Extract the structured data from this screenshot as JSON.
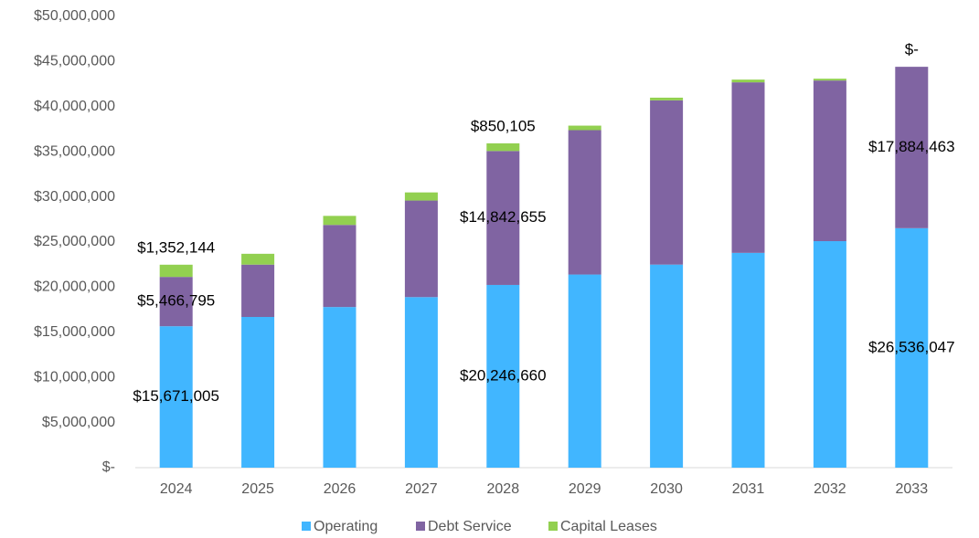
{
  "chart_data": {
    "type": "stacked_bar",
    "categories": [
      "2024",
      "2025",
      "2026",
      "2027",
      "2028",
      "2029",
      "2030",
      "2031",
      "2032",
      "2033"
    ],
    "series": [
      {
        "name": "Operating",
        "color": "#41b6ff",
        "values": [
          15671005,
          16700000,
          17800000,
          18900000,
          20246660,
          21400000,
          22500000,
          23800000,
          25100000,
          26536047
        ],
        "value_labels": [
          "$15,671,005",
          null,
          null,
          null,
          "$20,246,660",
          null,
          null,
          null,
          null,
          "$26,536,047"
        ]
      },
      {
        "name": "Debt Service",
        "color": "#8064a2",
        "values": [
          5466795,
          5800000,
          9100000,
          10700000,
          14842655,
          16000000,
          18200000,
          18900000,
          17800000,
          17884463
        ],
        "value_labels": [
          "$5,466,795",
          null,
          null,
          null,
          "$14,842,655",
          null,
          null,
          null,
          null,
          "$17,884,463"
        ]
      },
      {
        "name": "Capital Leases",
        "color": "#92d050",
        "values": [
          1352144,
          1200000,
          1000000,
          900000,
          850105,
          500000,
          300000,
          300000,
          200000,
          0
        ],
        "value_labels": [
          "$1,352,144",
          null,
          null,
          null,
          "$850,105",
          null,
          null,
          null,
          null,
          "$-"
        ]
      }
    ],
    "ylim": [
      0,
      50000000
    ],
    "yticks": [
      {
        "value": 0,
        "label": "$-"
      },
      {
        "value": 5000000,
        "label": "$5,000,000"
      },
      {
        "value": 10000000,
        "label": "$10,000,000"
      },
      {
        "value": 15000000,
        "label": "$15,000,000"
      },
      {
        "value": 20000000,
        "label": "$20,000,000"
      },
      {
        "value": 25000000,
        "label": "$25,000,000"
      },
      {
        "value": 30000000,
        "label": "$30,000,000"
      },
      {
        "value": 35000000,
        "label": "$35,000,000"
      },
      {
        "value": 40000000,
        "label": "$40,000,000"
      },
      {
        "value": 45000000,
        "label": "$45,000,000"
      },
      {
        "value": 50000000,
        "label": "$50,000,000"
      }
    ],
    "grid": false,
    "legend": "bottom"
  }
}
